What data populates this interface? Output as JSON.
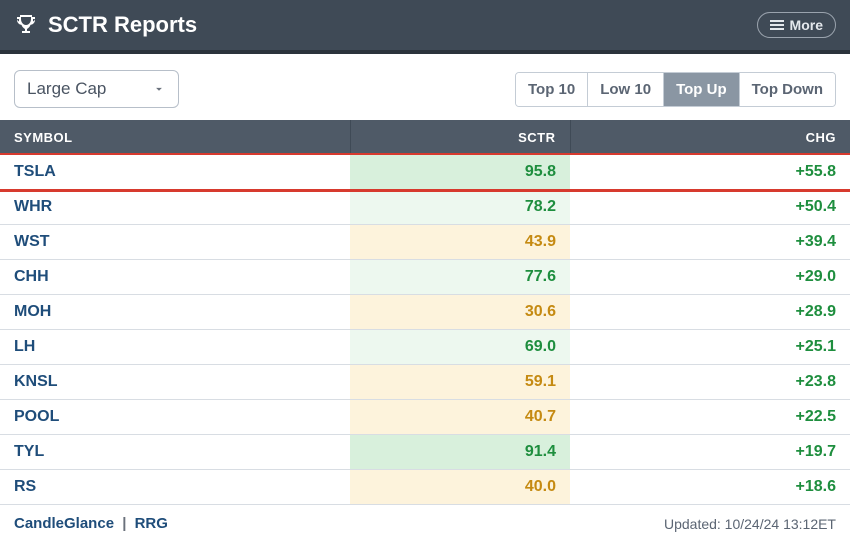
{
  "header": {
    "title": "SCTR Reports",
    "more_label": "More"
  },
  "controls": {
    "dropdown_label": "Large Cap",
    "tabs": [
      {
        "label": "Top 10",
        "active": false
      },
      {
        "label": "Low 10",
        "active": false
      },
      {
        "label": "Top Up",
        "active": true
      },
      {
        "label": "Top Down",
        "active": false
      }
    ]
  },
  "table": {
    "columns": [
      "SYMBOL",
      "SCTR",
      "CHG"
    ],
    "rows": [
      {
        "symbol": "TSLA",
        "sctr": "95.8",
        "sctr_class": "bg-green",
        "chg": "+55.8",
        "highlight": true
      },
      {
        "symbol": "WHR",
        "sctr": "78.2",
        "sctr_class": "bg-green-lt",
        "chg": "+50.4",
        "highlight": false
      },
      {
        "symbol": "WST",
        "sctr": "43.9",
        "sctr_class": "bg-yellow",
        "chg": "+39.4",
        "highlight": false
      },
      {
        "symbol": "CHH",
        "sctr": "77.6",
        "sctr_class": "bg-green-lt",
        "chg": "+29.0",
        "highlight": false
      },
      {
        "symbol": "MOH",
        "sctr": "30.6",
        "sctr_class": "bg-yellow",
        "chg": "+28.9",
        "highlight": false
      },
      {
        "symbol": "LH",
        "sctr": "69.0",
        "sctr_class": "bg-green-lt",
        "chg": "+25.1",
        "highlight": false
      },
      {
        "symbol": "KNSL",
        "sctr": "59.1",
        "sctr_class": "bg-yellow",
        "chg": "+23.8",
        "highlight": false
      },
      {
        "symbol": "POOL",
        "sctr": "40.7",
        "sctr_class": "bg-yellow",
        "chg": "+22.5",
        "highlight": false
      },
      {
        "symbol": "TYL",
        "sctr": "91.4",
        "sctr_class": "bg-green",
        "chg": "+19.7",
        "highlight": false
      },
      {
        "symbol": "RS",
        "sctr": "40.0",
        "sctr_class": "bg-yellow",
        "chg": "+18.6",
        "highlight": false
      }
    ]
  },
  "footer": {
    "link1": "CandleGlance",
    "link2": "RRG",
    "updated": "Updated: 10/24/24 13:12ET"
  },
  "colors": {
    "header_bg": "#3f4a56",
    "header_border": "#2b333c",
    "th_bg": "#4f5a67",
    "active_tab_bg": "#8a96a3",
    "symbol_text": "#1f4d7a",
    "positive_text": "#1e8e3e",
    "yellow_text": "#c58a12",
    "green_bg": "#d8f0dc",
    "green_lt_bg": "#edf8ef",
    "yellow_bg": "#fdf3dc",
    "highlight_border": "#d73a2e",
    "row_border": "#d8dde3"
  }
}
